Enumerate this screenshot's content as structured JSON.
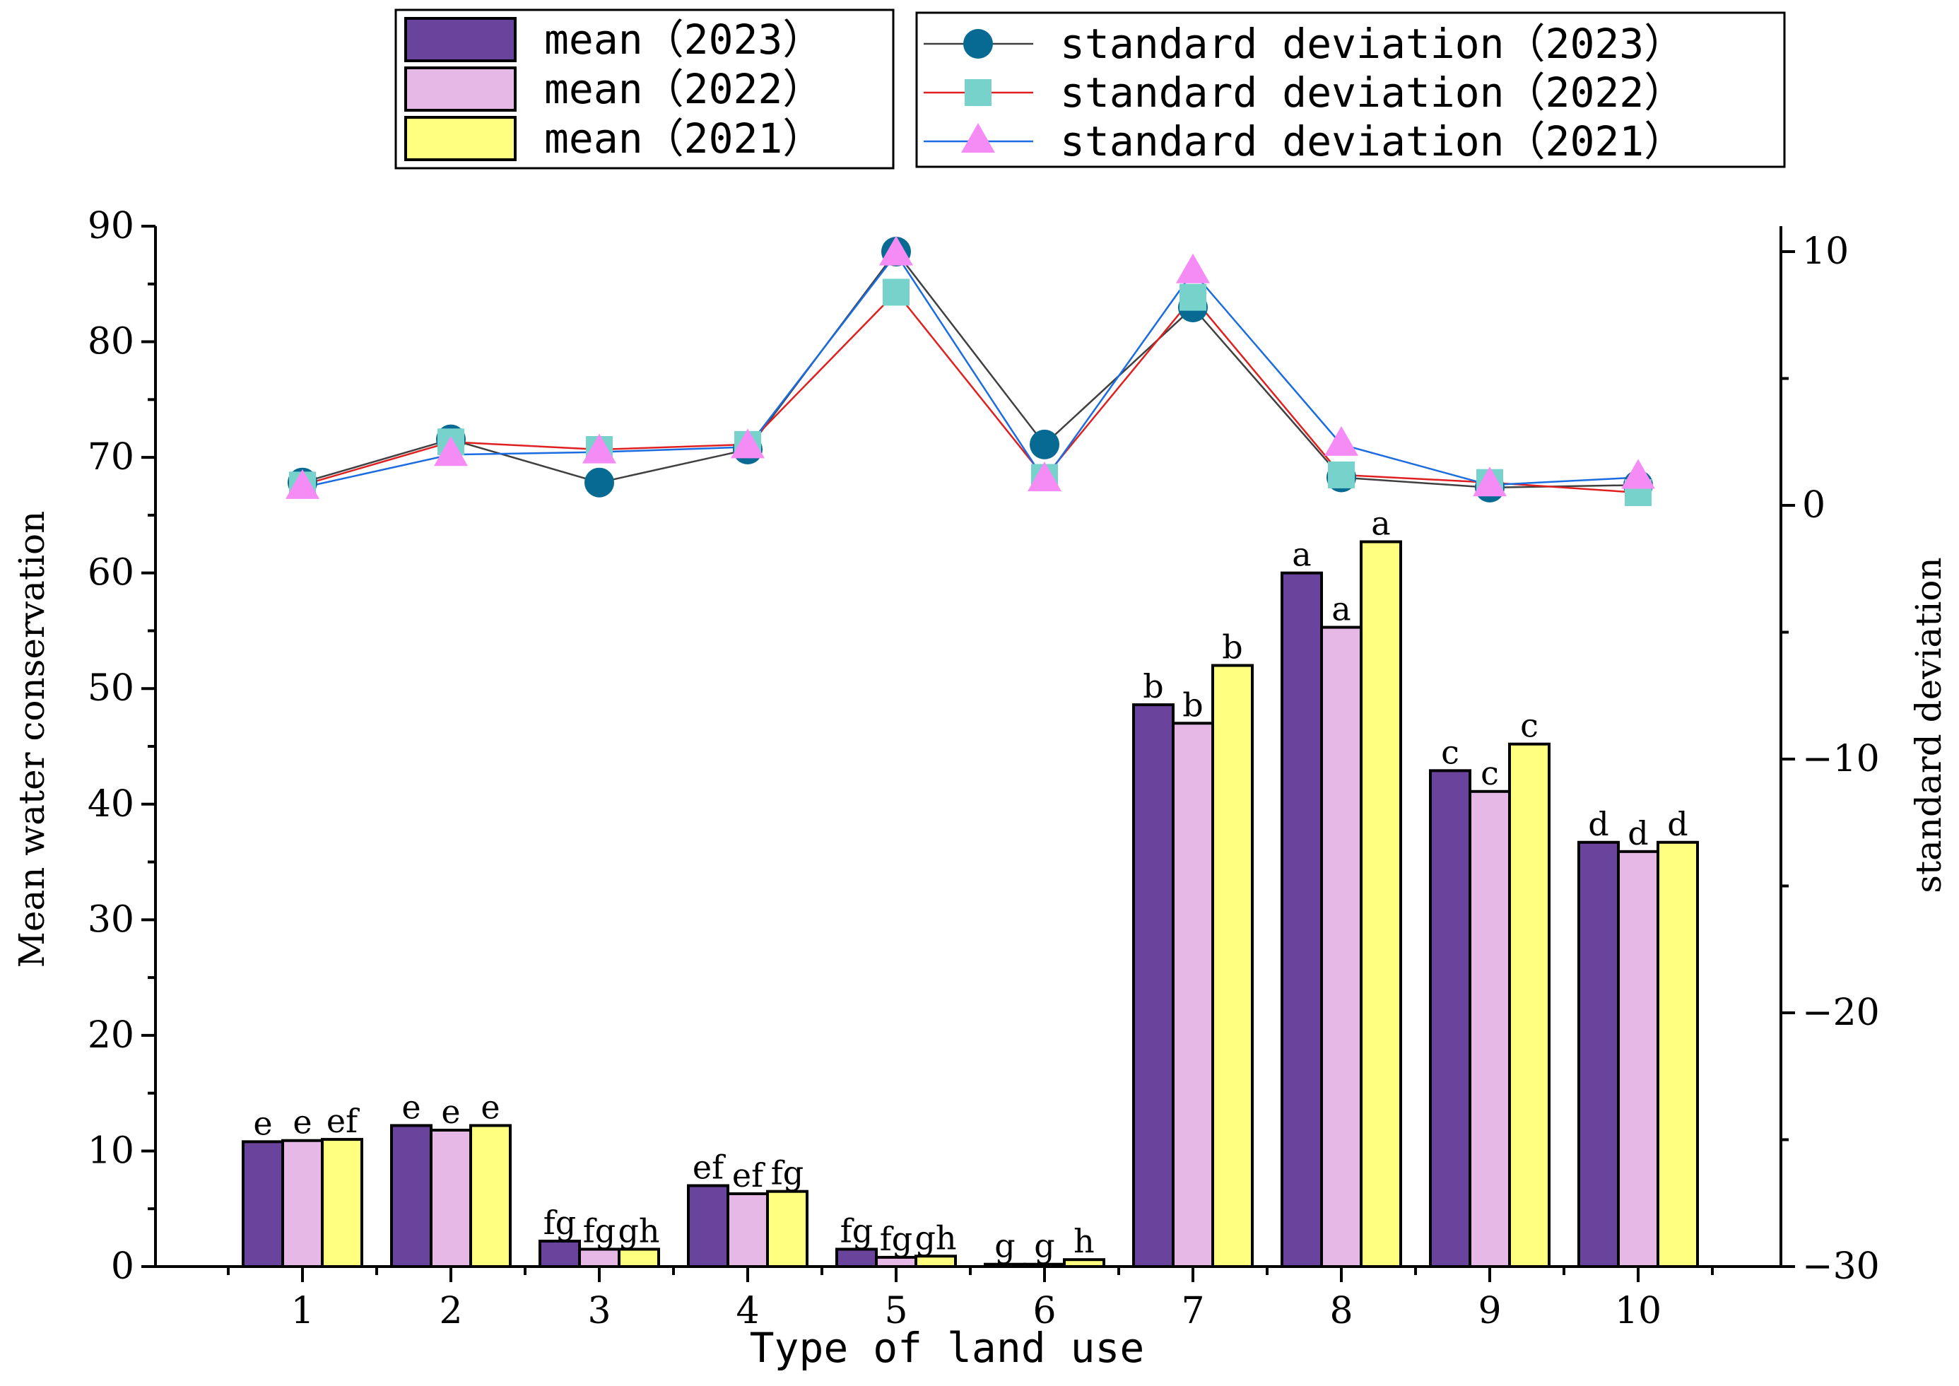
{
  "chart_data": {
    "type": "bar",
    "xlabel": "Type of land use",
    "ylabel": "Mean water conservation",
    "y2label": "standard deviation",
    "categories": [
      "1",
      "2",
      "3",
      "4",
      "5",
      "6",
      "7",
      "8",
      "9",
      "10"
    ],
    "ylim": [
      0,
      90
    ],
    "y2lim": [
      -30,
      11
    ],
    "y_ticks": [
      "0",
      "10",
      "20",
      "30",
      "40",
      "50",
      "60",
      "70",
      "80",
      "90"
    ],
    "y2_ticks": [
      "−30",
      "−20",
      "−10",
      "0",
      "10"
    ],
    "y2_tick_values": [
      -30,
      -20,
      -10,
      0,
      10
    ],
    "bar_series": [
      {
        "name": "mean（2023）",
        "color": "#6A449C",
        "values": [
          10.8,
          12.2,
          2.2,
          7.0,
          1.5,
          0.2,
          48.6,
          60.0,
          42.9,
          36.7
        ],
        "labels": [
          "e",
          "e",
          "fg",
          "ef",
          "fg",
          "g",
          "b",
          "a",
          "c",
          "d"
        ]
      },
      {
        "name": "mean（2022）",
        "color": "#E6B8E6",
        "values": [
          10.9,
          11.8,
          1.5,
          6.3,
          0.8,
          0.2,
          47.0,
          55.3,
          41.1,
          35.9
        ],
        "labels": [
          "e",
          "e",
          "fg",
          "ef",
          "fg",
          "g",
          "b",
          "a",
          "c",
          "d"
        ]
      },
      {
        "name": "mean（2021）",
        "color": "#FFFF80",
        "values": [
          11.0,
          12.2,
          1.5,
          6.5,
          0.9,
          0.6,
          52.0,
          62.7,
          45.2,
          36.7
        ],
        "labels": [
          "ef",
          "e",
          "gh",
          "fg",
          "gh",
          "h",
          "b",
          "a",
          "c",
          "d"
        ]
      }
    ],
    "line_series": [
      {
        "name": "standard deviation（2023）",
        "color": "#404040",
        "marker_color": "#066A92",
        "marker": "circle",
        "values": [
          0.9,
          2.6,
          0.9,
          2.2,
          10.0,
          2.4,
          7.8,
          1.1,
          0.7,
          0.8
        ]
      },
      {
        "name": "standard deviation（2022）",
        "color": "#E02020",
        "marker_color": "#78D2CC",
        "marker": "square",
        "values": [
          0.8,
          2.5,
          2.2,
          2.4,
          8.4,
          1.1,
          8.2,
          1.2,
          0.9,
          0.5
        ]
      },
      {
        "name": "standard deviation（2021）",
        "color": "#1A6CE0",
        "marker_color": "#F58CF5",
        "marker": "triangle",
        "values": [
          0.7,
          2.0,
          2.1,
          2.3,
          9.9,
          1.0,
          9.2,
          2.4,
          0.8,
          1.1
        ]
      }
    ],
    "grid": false,
    "legend": "top"
  }
}
